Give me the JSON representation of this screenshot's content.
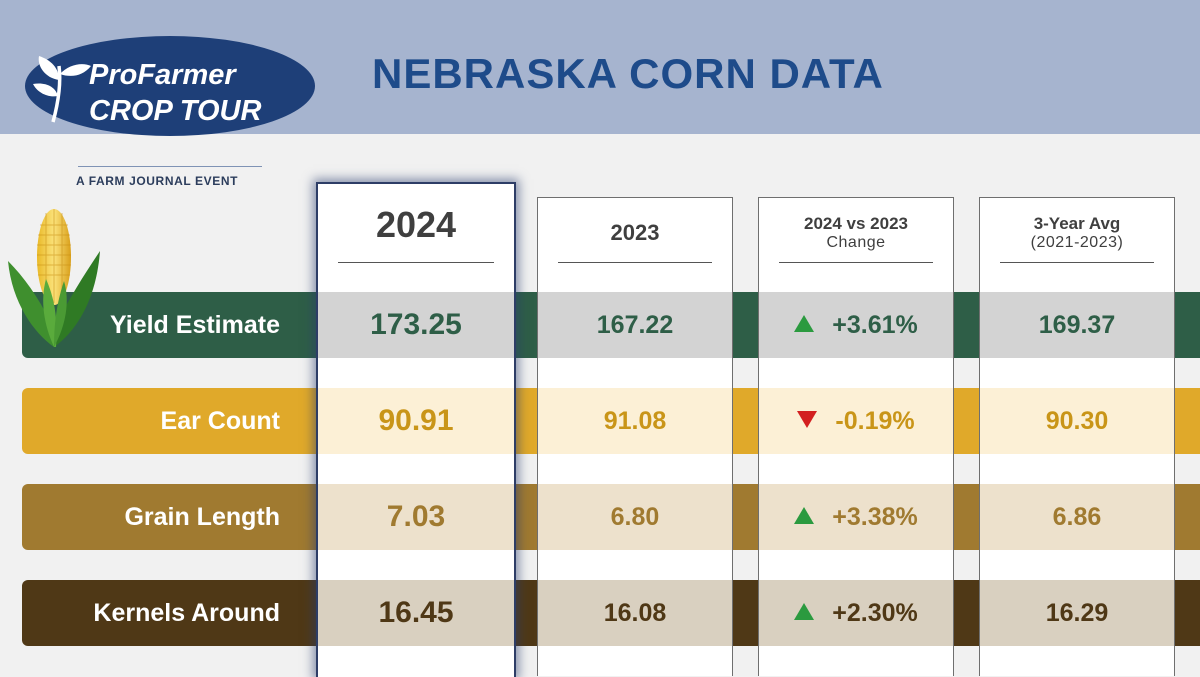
{
  "header": {
    "title": "NEBRASKA CORN DATA",
    "logo_line1": "ProFarmer",
    "logo_line2": "CROP TOUR",
    "tagline": "A FARM JOURNAL EVENT"
  },
  "columns": [
    {
      "title": "2024",
      "subtitle": ""
    },
    {
      "title": "2023",
      "subtitle": ""
    },
    {
      "title": "2024 vs 2023",
      "subtitle": "Change"
    },
    {
      "title": "3-Year Avg",
      "subtitle": "(2021-2023)"
    }
  ],
  "rows": [
    {
      "label": "Yield Estimate",
      "v2024": "173.25",
      "v2023": "167.22",
      "change": "+3.61%",
      "direction": "up",
      "avg": "169.37"
    },
    {
      "label": "Ear Count",
      "v2024": "90.91",
      "v2023": "91.08",
      "change": "-0.19%",
      "direction": "down",
      "avg": "90.30"
    },
    {
      "label": "Grain Length",
      "v2024": "7.03",
      "v2023": "6.80",
      "change": "+3.38%",
      "direction": "up",
      "avg": "6.86"
    },
    {
      "label": "Kernels Around",
      "v2024": "16.45",
      "v2023": "16.08",
      "change": "+2.30%",
      "direction": "up",
      "avg": "16.29"
    }
  ],
  "colors": {
    "header_band": "#a6b4cf",
    "title": "#1e4b8a",
    "row_yield": "#2e5e47",
    "row_ear": "#e0a92a",
    "row_grain": "#a07a30",
    "row_kernels": "#4f3816",
    "up": "#2b9a3f",
    "down": "#d32020"
  }
}
